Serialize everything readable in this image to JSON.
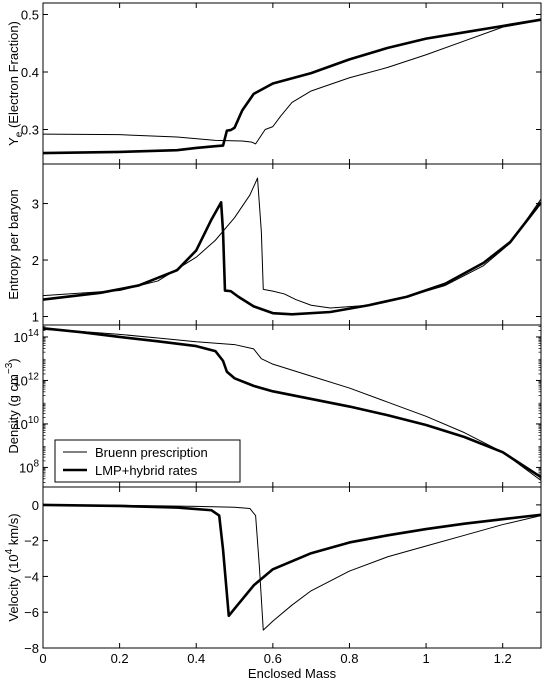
{
  "chart_data": {
    "type": "line",
    "xlabel": "Enclosed Mass",
    "xlim": [
      0,
      1.3
    ],
    "xticks": [
      "0",
      "0.2",
      "0.4",
      "0.6",
      "0.8",
      "1",
      "1.2"
    ],
    "legend": {
      "placement": "lower-left of density panel",
      "entries": [
        {
          "name": "Bruenn prescription",
          "style": "thin"
        },
        {
          "name": "LMP+hybrid rates",
          "style": "thick"
        }
      ]
    },
    "panels": [
      {
        "id": "ye",
        "ylabel_main": "Y",
        "ylabel_sub": "e",
        "ylabel_rest": " (Electron Fraction)",
        "ylim": [
          0.24,
          0.52
        ],
        "scale": "linear",
        "yticks": [
          {
            "v": 0.3,
            "label": "0.3"
          },
          {
            "v": 0.4,
            "label": "0.4"
          },
          {
            "v": 0.5,
            "label": "0.5"
          }
        ],
        "series": [
          {
            "name": "Bruenn prescription",
            "points": [
              [
                0,
                0.292
              ],
              [
                0.2,
                0.291
              ],
              [
                0.35,
                0.287
              ],
              [
                0.45,
                0.281
              ],
              [
                0.52,
                0.28
              ],
              [
                0.545,
                0.278
              ],
              [
                0.555,
                0.275
              ],
              [
                0.565,
                0.285
              ],
              [
                0.58,
                0.3
              ],
              [
                0.6,
                0.305
              ],
              [
                0.62,
                0.323
              ],
              [
                0.65,
                0.347
              ],
              [
                0.7,
                0.367
              ],
              [
                0.8,
                0.39
              ],
              [
                0.9,
                0.408
              ],
              [
                1.0,
                0.43
              ],
              [
                1.1,
                0.454
              ],
              [
                1.2,
                0.478
              ],
              [
                1.3,
                0.49
              ]
            ]
          },
          {
            "name": "LMP+hybrid rates",
            "points": [
              [
                0,
                0.259
              ],
              [
                0.2,
                0.261
              ],
              [
                0.35,
                0.264
              ],
              [
                0.4,
                0.268
              ],
              [
                0.45,
                0.271
              ],
              [
                0.47,
                0.272
              ],
              [
                0.48,
                0.298
              ],
              [
                0.49,
                0.299
              ],
              [
                0.5,
                0.303
              ],
              [
                0.52,
                0.333
              ],
              [
                0.55,
                0.362
              ],
              [
                0.6,
                0.38
              ],
              [
                0.7,
                0.398
              ],
              [
                0.8,
                0.422
              ],
              [
                0.9,
                0.442
              ],
              [
                1.0,
                0.458
              ],
              [
                1.1,
                0.469
              ],
              [
                1.2,
                0.48
              ],
              [
                1.3,
                0.491
              ]
            ]
          }
        ]
      },
      {
        "id": "entropy",
        "ylabel_main": "Entropy per baryon",
        "ylim": [
          0.85,
          3.7
        ],
        "scale": "linear",
        "yticks": [
          {
            "v": 1,
            "label": "1"
          },
          {
            "v": 2,
            "label": "2"
          },
          {
            "v": 3,
            "label": "3"
          }
        ],
        "series": [
          {
            "name": "Bruenn prescription",
            "points": [
              [
                0,
                1.37
              ],
              [
                0.2,
                1.46
              ],
              [
                0.3,
                1.63
              ],
              [
                0.4,
                2.05
              ],
              [
                0.45,
                2.35
              ],
              [
                0.5,
                2.75
              ],
              [
                0.54,
                3.15
              ],
              [
                0.56,
                3.45
              ],
              [
                0.57,
                2.5
              ],
              [
                0.575,
                1.48
              ],
              [
                0.6,
                1.45
              ],
              [
                0.63,
                1.4
              ],
              [
                0.66,
                1.3
              ],
              [
                0.7,
                1.2
              ],
              [
                0.75,
                1.15
              ],
              [
                0.85,
                1.2
              ],
              [
                0.95,
                1.35
              ],
              [
                1.05,
                1.55
              ],
              [
                1.15,
                1.9
              ],
              [
                1.22,
                2.3
              ],
              [
                1.3,
                3.08
              ]
            ]
          },
          {
            "name": "LMP+hybrid rates",
            "points": [
              [
                0,
                1.3
              ],
              [
                0.15,
                1.42
              ],
              [
                0.25,
                1.55
              ],
              [
                0.35,
                1.82
              ],
              [
                0.4,
                2.17
              ],
              [
                0.44,
                2.72
              ],
              [
                0.465,
                3.02
              ],
              [
                0.47,
                2.5
              ],
              [
                0.475,
                1.46
              ],
              [
                0.49,
                1.45
              ],
              [
                0.51,
                1.35
              ],
              [
                0.55,
                1.18
              ],
              [
                0.6,
                1.06
              ],
              [
                0.65,
                1.04
              ],
              [
                0.75,
                1.08
              ],
              [
                0.85,
                1.2
              ],
              [
                0.95,
                1.35
              ],
              [
                1.05,
                1.58
              ],
              [
                1.15,
                1.95
              ],
              [
                1.22,
                2.32
              ],
              [
                1.3,
                3.02
              ]
            ]
          }
        ]
      },
      {
        "id": "density",
        "ylabel_main": "Density (g cm",
        "ylabel_sup": "−3",
        "ylabel_rest": ")",
        "ylim": [
          7.1,
          14.55
        ],
        "scale": "log10",
        "yticks": [
          {
            "v": 8,
            "base": "10",
            "exp": "8"
          },
          {
            "v": 10,
            "base": "10",
            "exp": "10"
          },
          {
            "v": 12,
            "base": "10",
            "exp": "12"
          },
          {
            "v": 14,
            "base": "10",
            "exp": "14"
          }
        ],
        "series": [
          {
            "name": "Bruenn prescription",
            "points": [
              [
                0,
                14.35
              ],
              [
                0.1,
                14.25
              ],
              [
                0.2,
                14.12
              ],
              [
                0.3,
                13.95
              ],
              [
                0.4,
                13.78
              ],
              [
                0.5,
                13.65
              ],
              [
                0.55,
                13.45
              ],
              [
                0.57,
                13.0
              ],
              [
                0.6,
                12.75
              ],
              [
                0.7,
                12.2
              ],
              [
                0.8,
                11.65
              ],
              [
                0.9,
                11.0
              ],
              [
                1.0,
                10.35
              ],
              [
                1.1,
                9.6
              ],
              [
                1.2,
                8.7
              ],
              [
                1.3,
                7.4
              ]
            ]
          },
          {
            "name": "LMP+hybrid rates",
            "points": [
              [
                0,
                14.4
              ],
              [
                0.1,
                14.22
              ],
              [
                0.2,
                14.0
              ],
              [
                0.3,
                13.8
              ],
              [
                0.4,
                13.58
              ],
              [
                0.45,
                13.35
              ],
              [
                0.47,
                12.9
              ],
              [
                0.48,
                12.4
              ],
              [
                0.5,
                12.1
              ],
              [
                0.55,
                11.75
              ],
              [
                0.6,
                11.5
              ],
              [
                0.7,
                11.15
              ],
              [
                0.8,
                10.8
              ],
              [
                0.9,
                10.4
              ],
              [
                1.0,
                9.95
              ],
              [
                1.1,
                9.4
              ],
              [
                1.2,
                8.7
              ],
              [
                1.3,
                7.55
              ]
            ]
          }
        ]
      },
      {
        "id": "velocity",
        "ylabel_main": "Velocity (10",
        "ylabel_sup": "4",
        "ylabel_rest": " km/s)",
        "ylim": [
          -8,
          1
        ],
        "scale": "linear",
        "yticks": [
          {
            "v": -8,
            "label": "−8"
          },
          {
            "v": -6,
            "label": "−6"
          },
          {
            "v": -4,
            "label": "−4"
          },
          {
            "v": -2,
            "label": "−2"
          },
          {
            "v": 0,
            "label": "0"
          }
        ],
        "series": [
          {
            "name": "Bruenn prescription",
            "points": [
              [
                0,
                0
              ],
              [
                0.2,
                -0.02
              ],
              [
                0.4,
                -0.08
              ],
              [
                0.5,
                -0.13
              ],
              [
                0.54,
                -0.2
              ],
              [
                0.555,
                -0.6
              ],
              [
                0.565,
                -3.5
              ],
              [
                0.575,
                -7.0
              ],
              [
                0.6,
                -6.5
              ],
              [
                0.65,
                -5.6
              ],
              [
                0.7,
                -4.8
              ],
              [
                0.8,
                -3.7
              ],
              [
                0.9,
                -2.9
              ],
              [
                1.0,
                -2.3
              ],
              [
                1.1,
                -1.7
              ],
              [
                1.2,
                -1.1
              ],
              [
                1.3,
                -0.6
              ]
            ]
          },
          {
            "name": "LMP+hybrid rates",
            "points": [
              [
                0,
                0
              ],
              [
                0.2,
                -0.06
              ],
              [
                0.35,
                -0.15
              ],
              [
                0.44,
                -0.3
              ],
              [
                0.46,
                -0.6
              ],
              [
                0.47,
                -2.5
              ],
              [
                0.485,
                -6.2
              ],
              [
                0.5,
                -5.8
              ],
              [
                0.55,
                -4.5
              ],
              [
                0.6,
                -3.6
              ],
              [
                0.7,
                -2.7
              ],
              [
                0.8,
                -2.1
              ],
              [
                0.9,
                -1.7
              ],
              [
                1.0,
                -1.35
              ],
              [
                1.1,
                -1.05
              ],
              [
                1.2,
                -0.8
              ],
              [
                1.3,
                -0.55
              ]
            ]
          }
        ]
      }
    ]
  }
}
